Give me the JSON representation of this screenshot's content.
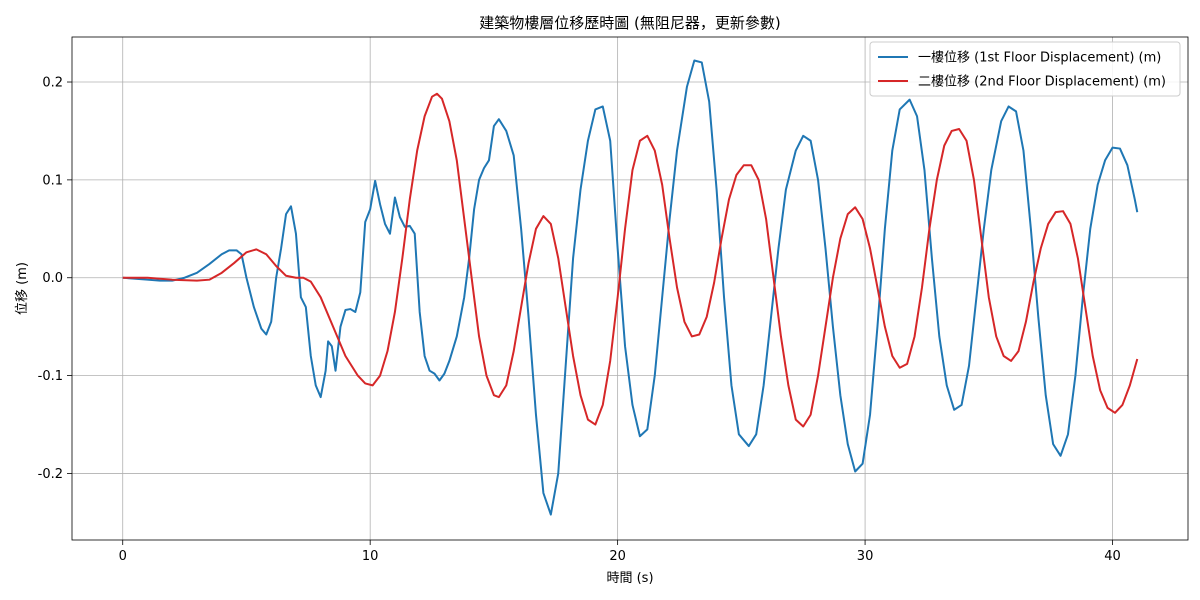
{
  "chart_data": {
    "type": "line",
    "title": "建築物樓層位移歷時圖 (無阻尼器，更新參數)",
    "xlabel": "時間 (s)",
    "ylabel": "位移 (m)",
    "xlim": [
      -2.05,
      43.05
    ],
    "ylim": [
      -0.268,
      0.246
    ],
    "xticks": [
      0,
      10,
      20,
      30,
      40
    ],
    "xtick_labels": [
      "0",
      "10",
      "20",
      "30",
      "40"
    ],
    "yticks": [
      -0.2,
      -0.1,
      0.0,
      0.1,
      0.2
    ],
    "ytick_labels": [
      "-0.2",
      "-0.1",
      "0.0",
      "0.1",
      "0.2"
    ],
    "grid": true,
    "legend_position": "top-right",
    "series": [
      {
        "name": "一樓位移 (1st Floor Displacement) (m)",
        "color": "#1f77b4",
        "points": [
          [
            0,
            0
          ],
          [
            1,
            -0.002
          ],
          [
            1.5,
            -0.003
          ],
          [
            2,
            -0.003
          ],
          [
            2.5,
            0.0
          ],
          [
            3,
            0.005
          ],
          [
            3.5,
            0.014
          ],
          [
            4,
            0.024
          ],
          [
            4.3,
            0.028
          ],
          [
            4.6,
            0.028
          ],
          [
            4.8,
            0.024
          ],
          [
            5,
            0.0
          ],
          [
            5.3,
            -0.03
          ],
          [
            5.6,
            -0.052
          ],
          [
            5.8,
            -0.058
          ],
          [
            6,
            -0.045
          ],
          [
            6.2,
            0.0
          ],
          [
            6.4,
            0.03
          ],
          [
            6.6,
            0.065
          ],
          [
            6.8,
            0.073
          ],
          [
            7,
            0.045
          ],
          [
            7.2,
            -0.02
          ],
          [
            7.4,
            -0.03
          ],
          [
            7.6,
            -0.08
          ],
          [
            7.8,
            -0.11
          ],
          [
            8,
            -0.122
          ],
          [
            8.2,
            -0.095
          ],
          [
            8.3,
            -0.065
          ],
          [
            8.45,
            -0.07
          ],
          [
            8.6,
            -0.095
          ],
          [
            8.8,
            -0.05
          ],
          [
            9.0,
            -0.033
          ],
          [
            9.2,
            -0.032
          ],
          [
            9.4,
            -0.035
          ],
          [
            9.6,
            -0.015
          ],
          [
            9.8,
            0.057
          ],
          [
            10.0,
            0.07
          ],
          [
            10.2,
            0.099
          ],
          [
            10.4,
            0.075
          ],
          [
            10.6,
            0.055
          ],
          [
            10.8,
            0.045
          ],
          [
            11.0,
            0.082
          ],
          [
            11.2,
            0.062
          ],
          [
            11.4,
            0.052
          ],
          [
            11.6,
            0.053
          ],
          [
            11.8,
            0.045
          ],
          [
            12.0,
            -0.035
          ],
          [
            12.2,
            -0.08
          ],
          [
            12.4,
            -0.095
          ],
          [
            12.6,
            -0.098
          ],
          [
            12.8,
            -0.105
          ],
          [
            13.0,
            -0.098
          ],
          [
            13.2,
            -0.085
          ],
          [
            13.5,
            -0.06
          ],
          [
            13.8,
            -0.02
          ],
          [
            14.0,
            0.02
          ],
          [
            14.2,
            0.07
          ],
          [
            14.4,
            0.1
          ],
          [
            14.6,
            0.112
          ],
          [
            14.8,
            0.12
          ],
          [
            15.0,
            0.155
          ],
          [
            15.2,
            0.162
          ],
          [
            15.5,
            0.15
          ],
          [
            15.8,
            0.125
          ],
          [
            16.1,
            0.05
          ],
          [
            16.4,
            -0.04
          ],
          [
            16.7,
            -0.14
          ],
          [
            17.0,
            -0.22
          ],
          [
            17.3,
            -0.242
          ],
          [
            17.6,
            -0.2
          ],
          [
            17.9,
            -0.09
          ],
          [
            18.2,
            0.02
          ],
          [
            18.5,
            0.09
          ],
          [
            18.8,
            0.14
          ],
          [
            19.1,
            0.172
          ],
          [
            19.4,
            0.175
          ],
          [
            19.7,
            0.14
          ],
          [
            20.0,
            0.03
          ],
          [
            20.3,
            -0.07
          ],
          [
            20.6,
            -0.13
          ],
          [
            20.9,
            -0.162
          ],
          [
            21.2,
            -0.155
          ],
          [
            21.5,
            -0.1
          ],
          [
            21.8,
            -0.02
          ],
          [
            22.1,
            0.06
          ],
          [
            22.4,
            0.13
          ],
          [
            22.8,
            0.195
          ],
          [
            23.1,
            0.222
          ],
          [
            23.4,
            0.22
          ],
          [
            23.7,
            0.18
          ],
          [
            24.0,
            0.09
          ],
          [
            24.3,
            -0.02
          ],
          [
            24.6,
            -0.11
          ],
          [
            24.9,
            -0.16
          ],
          [
            25.3,
            -0.172
          ],
          [
            25.6,
            -0.16
          ],
          [
            25.9,
            -0.11
          ],
          [
            26.2,
            -0.04
          ],
          [
            26.5,
            0.03
          ],
          [
            26.8,
            0.09
          ],
          [
            27.2,
            0.13
          ],
          [
            27.5,
            0.145
          ],
          [
            27.8,
            0.14
          ],
          [
            28.1,
            0.1
          ],
          [
            28.4,
            0.03
          ],
          [
            28.7,
            -0.05
          ],
          [
            29.0,
            -0.12
          ],
          [
            29.3,
            -0.17
          ],
          [
            29.6,
            -0.198
          ],
          [
            29.9,
            -0.19
          ],
          [
            30.2,
            -0.14
          ],
          [
            30.5,
            -0.05
          ],
          [
            30.8,
            0.05
          ],
          [
            31.1,
            0.13
          ],
          [
            31.4,
            0.172
          ],
          [
            31.8,
            0.182
          ],
          [
            32.1,
            0.165
          ],
          [
            32.4,
            0.11
          ],
          [
            32.7,
            0.02
          ],
          [
            33.0,
            -0.06
          ],
          [
            33.3,
            -0.11
          ],
          [
            33.6,
            -0.135
          ],
          [
            33.9,
            -0.13
          ],
          [
            34.2,
            -0.09
          ],
          [
            34.5,
            -0.02
          ],
          [
            34.8,
            0.05
          ],
          [
            35.1,
            0.11
          ],
          [
            35.5,
            0.16
          ],
          [
            35.8,
            0.175
          ],
          [
            36.1,
            0.17
          ],
          [
            36.4,
            0.13
          ],
          [
            36.7,
            0.05
          ],
          [
            37.0,
            -0.04
          ],
          [
            37.3,
            -0.12
          ],
          [
            37.6,
            -0.17
          ],
          [
            37.9,
            -0.182
          ],
          [
            38.2,
            -0.16
          ],
          [
            38.5,
            -0.1
          ],
          [
            38.8,
            -0.02
          ],
          [
            39.1,
            0.05
          ],
          [
            39.4,
            0.095
          ],
          [
            39.7,
            0.12
          ],
          [
            40.0,
            0.133
          ],
          [
            40.3,
            0.132
          ],
          [
            40.6,
            0.115
          ],
          [
            40.9,
            0.08
          ],
          [
            41.0,
            0.067
          ]
        ]
      },
      {
        "name": "二樓位移 (2nd Floor Displacement) (m)",
        "color": "#d62728",
        "points": [
          [
            0,
            0
          ],
          [
            1,
            0.0
          ],
          [
            2,
            -0.002
          ],
          [
            3,
            -0.003
          ],
          [
            3.5,
            -0.002
          ],
          [
            4,
            0.005
          ],
          [
            4.5,
            0.015
          ],
          [
            5,
            0.026
          ],
          [
            5.4,
            0.029
          ],
          [
            5.8,
            0.024
          ],
          [
            6.2,
            0.012
          ],
          [
            6.6,
            0.002
          ],
          [
            7,
            0.0
          ],
          [
            7.3,
            0.0
          ],
          [
            7.6,
            -0.004
          ],
          [
            8,
            -0.02
          ],
          [
            8.5,
            -0.05
          ],
          [
            9,
            -0.08
          ],
          [
            9.5,
            -0.1
          ],
          [
            9.8,
            -0.108
          ],
          [
            10.1,
            -0.11
          ],
          [
            10.4,
            -0.1
          ],
          [
            10.7,
            -0.075
          ],
          [
            11,
            -0.035
          ],
          [
            11.3,
            0.02
          ],
          [
            11.6,
            0.08
          ],
          [
            11.9,
            0.13
          ],
          [
            12.2,
            0.165
          ],
          [
            12.5,
            0.185
          ],
          [
            12.7,
            0.188
          ],
          [
            12.9,
            0.183
          ],
          [
            13.2,
            0.16
          ],
          [
            13.5,
            0.12
          ],
          [
            13.8,
            0.06
          ],
          [
            14.1,
            0.0
          ],
          [
            14.4,
            -0.06
          ],
          [
            14.7,
            -0.1
          ],
          [
            15.0,
            -0.12
          ],
          [
            15.2,
            -0.122
          ],
          [
            15.5,
            -0.11
          ],
          [
            15.8,
            -0.075
          ],
          [
            16.1,
            -0.03
          ],
          [
            16.4,
            0.015
          ],
          [
            16.7,
            0.05
          ],
          [
            17.0,
            0.063
          ],
          [
            17.3,
            0.055
          ],
          [
            17.6,
            0.02
          ],
          [
            17.9,
            -0.03
          ],
          [
            18.2,
            -0.08
          ],
          [
            18.5,
            -0.12
          ],
          [
            18.8,
            -0.145
          ],
          [
            19.1,
            -0.15
          ],
          [
            19.4,
            -0.13
          ],
          [
            19.7,
            -0.085
          ],
          [
            20.0,
            -0.02
          ],
          [
            20.3,
            0.05
          ],
          [
            20.6,
            0.11
          ],
          [
            20.9,
            0.14
          ],
          [
            21.2,
            0.145
          ],
          [
            21.5,
            0.13
          ],
          [
            21.8,
            0.095
          ],
          [
            22.1,
            0.04
          ],
          [
            22.4,
            -0.01
          ],
          [
            22.7,
            -0.045
          ],
          [
            23.0,
            -0.06
          ],
          [
            23.3,
            -0.058
          ],
          [
            23.6,
            -0.04
          ],
          [
            23.9,
            -0.005
          ],
          [
            24.2,
            0.04
          ],
          [
            24.5,
            0.08
          ],
          [
            24.8,
            0.105
          ],
          [
            25.1,
            0.115
          ],
          [
            25.4,
            0.115
          ],
          [
            25.7,
            0.1
          ],
          [
            26.0,
            0.06
          ],
          [
            26.3,
            0.0
          ],
          [
            26.6,
            -0.06
          ],
          [
            26.9,
            -0.11
          ],
          [
            27.2,
            -0.145
          ],
          [
            27.5,
            -0.152
          ],
          [
            27.8,
            -0.14
          ],
          [
            28.1,
            -0.1
          ],
          [
            28.4,
            -0.05
          ],
          [
            28.7,
            0.0
          ],
          [
            29.0,
            0.04
          ],
          [
            29.3,
            0.065
          ],
          [
            29.6,
            0.072
          ],
          [
            29.9,
            0.06
          ],
          [
            30.2,
            0.03
          ],
          [
            30.5,
            -0.01
          ],
          [
            30.8,
            -0.05
          ],
          [
            31.1,
            -0.08
          ],
          [
            31.4,
            -0.092
          ],
          [
            31.7,
            -0.088
          ],
          [
            32.0,
            -0.06
          ],
          [
            32.3,
            -0.01
          ],
          [
            32.6,
            0.05
          ],
          [
            32.9,
            0.1
          ],
          [
            33.2,
            0.135
          ],
          [
            33.5,
            0.15
          ],
          [
            33.8,
            0.152
          ],
          [
            34.1,
            0.14
          ],
          [
            34.4,
            0.1
          ],
          [
            34.7,
            0.04
          ],
          [
            35.0,
            -0.02
          ],
          [
            35.3,
            -0.06
          ],
          [
            35.6,
            -0.08
          ],
          [
            35.9,
            -0.085
          ],
          [
            36.2,
            -0.075
          ],
          [
            36.5,
            -0.045
          ],
          [
            36.8,
            -0.005
          ],
          [
            37.1,
            0.03
          ],
          [
            37.4,
            0.055
          ],
          [
            37.7,
            0.067
          ],
          [
            38.0,
            0.068
          ],
          [
            38.3,
            0.055
          ],
          [
            38.6,
            0.02
          ],
          [
            38.9,
            -0.03
          ],
          [
            39.2,
            -0.08
          ],
          [
            39.5,
            -0.115
          ],
          [
            39.8,
            -0.133
          ],
          [
            40.1,
            -0.138
          ],
          [
            40.4,
            -0.13
          ],
          [
            40.7,
            -0.11
          ],
          [
            41.0,
            -0.083
          ]
        ]
      }
    ]
  }
}
